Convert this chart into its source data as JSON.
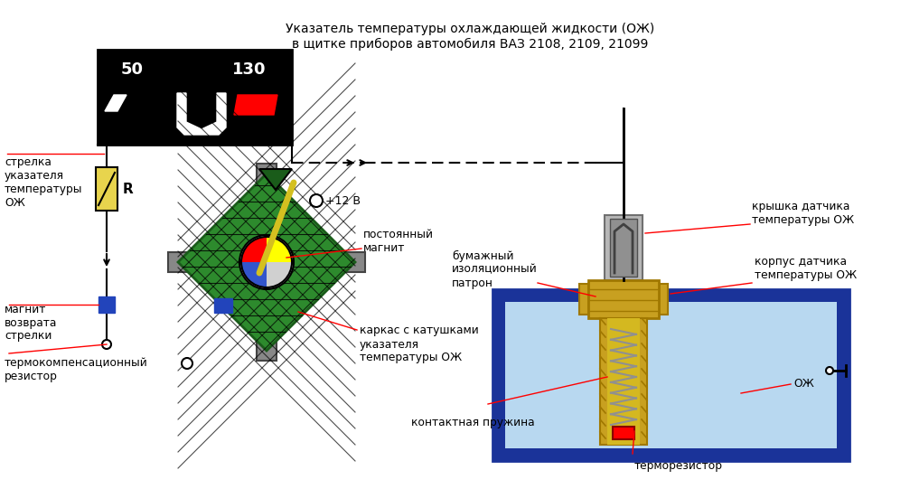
{
  "title_line1": "Указатель температуры охлаждающей жидкости (ОЖ)",
  "title_line2": "в щитке приборов автомобиля ВАЗ 2108, 2109, 21099",
  "labels": {
    "strelka": "стрелка\nуказателя\nтемпературы\nОЖ",
    "magnit": "магнит\nвозврата\nстрелки",
    "termo": "термокомпенсационный\nрезистор",
    "postoyannyy": "постоянный\nмагнит",
    "karkas": "каркас с катушками\nуказателя\nтемпературы ОЖ",
    "kontakt": "контактная пружина",
    "termoresistor": "терморезистор",
    "bumazh": "бумажный\nизоляционный\nпатрон",
    "kryshka": "крышка датчика\nтемпературы ОЖ",
    "korpus": "корпус датчика\nтемпературы ОЖ",
    "ozh": "ОЖ",
    "plus12": "+12 В"
  },
  "colors": {
    "black": "#000000",
    "white": "#ffffff",
    "red": "#ff0000",
    "green": "#2d8a2d",
    "dark_green": "#1a5c1a",
    "gold": "#c8a020",
    "gold_dark": "#a07800",
    "blue": "#1a3399",
    "light_blue": "#b8d8f0",
    "gray": "#888888",
    "dark_gray": "#444444",
    "silver": "#c0c0c0",
    "silver_dark": "#808080",
    "resistor_yellow": "#e8d44d",
    "mag_blue": "#2244bb"
  }
}
